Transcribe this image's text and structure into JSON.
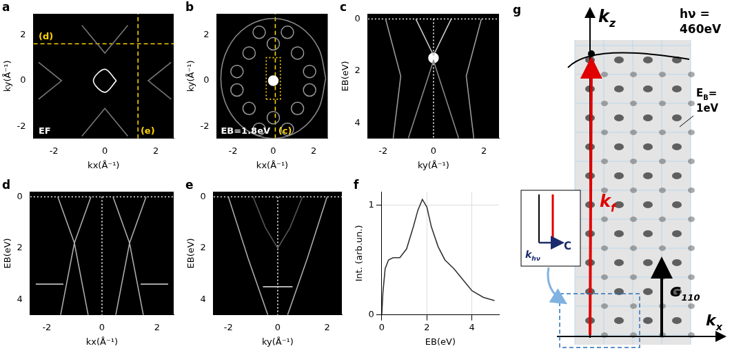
{
  "chart_data": [
    {
      "panel": "a",
      "type": "intensity_map",
      "xlabel": "kx(Å⁻¹)",
      "ylabel": "ky(Å⁻¹)",
      "xlim": [
        -2.8,
        2.7
      ],
      "ylim": [
        -2.5,
        2.9
      ],
      "xticks": [
        -2,
        0,
        2
      ],
      "yticks": [
        -2,
        0,
        2
      ],
      "grid": false,
      "series": [
        {
          "type": "line",
          "color": "#ffffff",
          "values": [
            [
              0.45,
              0
            ],
            [
              0,
              0.5
            ],
            [
              -0.45,
              0
            ],
            [
              0,
              -0.5
            ],
            [
              0.45,
              0
            ]
          ]
        },
        {
          "type": "line",
          "color": "#777777",
          "values": [
            [
              -0.9,
              2.4
            ],
            [
              0,
              1.2
            ],
            [
              0.9,
              2.4
            ]
          ]
        },
        {
          "type": "line",
          "color": "#777777",
          "values": [
            [
              -0.9,
              -2.4
            ],
            [
              0,
              -1.2
            ],
            [
              0.9,
              -2.4
            ]
          ]
        },
        {
          "type": "line",
          "color": "#777777",
          "values": [
            [
              -2.6,
              0.8
            ],
            [
              -1.7,
              0
            ],
            [
              -2.6,
              -0.8
            ]
          ]
        },
        {
          "type": "line",
          "color": "#777777",
          "values": [
            [
              2.6,
              0.8
            ],
            [
              1.7,
              0
            ],
            [
              2.6,
              -0.8
            ]
          ]
        },
        {
          "type": "line",
          "color": "#ffd400",
          "line_style": "dashed",
          "values": [
            [
              -2.8,
              1.6
            ],
            [
              2.7,
              1.6
            ]
          ]
        },
        {
          "type": "line",
          "color": "#ffd400",
          "line_style": "dashed",
          "values": [
            [
              1.3,
              -2.5
            ],
            [
              1.3,
              2.9
            ]
          ]
        }
      ],
      "annotations": [
        {
          "text": "(d)",
          "x": -2.6,
          "y": 1.7,
          "color": "#ffd400"
        },
        {
          "text": "(e)",
          "x": 1.4,
          "y": -2.4,
          "color": "#ffd400"
        },
        {
          "text": "EF",
          "x": -2.6,
          "y": -2.4,
          "color": "#ffffff"
        }
      ]
    },
    {
      "panel": "b",
      "type": "intensity_map",
      "xlabel": "kx(Å⁻¹)",
      "ylabel": "ky(Å⁻¹)",
      "xlim": [
        -2.8,
        2.7
      ],
      "ylim": [
        -2.5,
        2.9
      ],
      "xticks": [
        -2,
        0,
        2
      ],
      "yticks": [
        -2,
        0,
        2
      ],
      "grid": false,
      "series": [
        {
          "type": "line",
          "color": "#888888",
          "values": [
            [
              2.6,
              0.1
            ],
            [
              2.25,
              1.4
            ],
            [
              1.3,
              2.35
            ],
            [
              0,
              2.7
            ],
            [
              -1.3,
              2.35
            ],
            [
              -2.25,
              1.4
            ],
            [
              -2.6,
              0.1
            ],
            [
              -2.25,
              -1.2
            ],
            [
              -1.3,
              -2.15
            ],
            [
              0,
              -2.5
            ],
            [
              1.3,
              -2.15
            ],
            [
              2.25,
              -1.2
            ],
            [
              2.6,
              0.1
            ]
          ]
        },
        {
          "type": "scatter",
          "color": "#999999",
          "marker": "circle",
          "values": [
            [
              0,
              1.6
            ],
            [
              0,
              -1.6
            ],
            [
              -1.2,
              1.2
            ],
            [
              1.2,
              1.2
            ],
            [
              -1.2,
              -1.2
            ],
            [
              1.2,
              -1.2
            ],
            [
              -1.8,
              0.4
            ],
            [
              1.8,
              0.4
            ],
            [
              -1.8,
              -0.4
            ],
            [
              1.8,
              -0.4
            ],
            [
              -0.7,
              2.1
            ],
            [
              0.7,
              2.1
            ],
            [
              -0.7,
              -2.1
            ],
            [
              0.7,
              -2.1
            ]
          ]
        },
        {
          "type": "scatter",
          "color": "#ffffff",
          "marker": "dot",
          "values": [
            [
              0,
              0
            ]
          ]
        },
        {
          "type": "line",
          "color": "#ffd400",
          "line_style": "dashed",
          "values": [
            [
              0.1,
              -2.5
            ],
            [
              0.1,
              2.9
            ]
          ]
        },
        {
          "type": "line",
          "color": "#ffd400",
          "line_style": "dotted",
          "values": [
            [
              -0.35,
              -0.8
            ],
            [
              0.35,
              -0.8
            ],
            [
              0.35,
              1.0
            ],
            [
              -0.35,
              1.0
            ],
            [
              -0.35,
              -0.8
            ]
          ]
        }
      ],
      "annotations": [
        {
          "text": "EB=1.8eV",
          "x": -2.6,
          "y": -2.4,
          "color": "#ffffff"
        },
        {
          "text": "(c)",
          "x": 0.25,
          "y": -2.4,
          "color": "#ffd400"
        }
      ]
    },
    {
      "panel": "c",
      "type": "intensity_map",
      "xlabel": "ky(Å⁻¹)",
      "ylabel": "EB(eV)",
      "xlim": [
        -2.6,
        2.6
      ],
      "ylim": [
        4.6,
        -0.2
      ],
      "xticks": [
        -2,
        0,
        2
      ],
      "yticks": [
        0,
        2,
        4
      ],
      "grid": false,
      "series": [
        {
          "type": "line",
          "color": "#cccccc",
          "values": [
            [
              -0.7,
              0
            ],
            [
              0,
              1.4
            ],
            [
              0.7,
              0
            ]
          ]
        },
        {
          "type": "line",
          "color": "#888888",
          "values": [
            [
              -1.0,
              4.6
            ],
            [
              0,
              1.6
            ],
            [
              1.0,
              4.6
            ]
          ]
        },
        {
          "type": "line",
          "color": "#999999",
          "values": [
            [
              -1.9,
              0
            ],
            [
              -1.3,
              2.2
            ],
            [
              -1.6,
              4.6
            ]
          ]
        },
        {
          "type": "line",
          "color": "#999999",
          "values": [
            [
              1.9,
              0
            ],
            [
              1.3,
              2.2
            ],
            [
              1.6,
              4.6
            ]
          ]
        },
        {
          "type": "scatter",
          "color": "#ffffff",
          "marker": "dot",
          "values": [
            [
              0,
              1.5
            ]
          ]
        },
        {
          "type": "line",
          "color": "#ffffff",
          "line_style": "dotted",
          "values": [
            [
              0,
              0
            ],
            [
              0,
              4.6
            ]
          ]
        },
        {
          "type": "line",
          "color": "#ffffff",
          "line_style": "dotted",
          "values": [
            [
              -2.6,
              0
            ],
            [
              2.6,
              0
            ]
          ]
        }
      ],
      "annotations": []
    },
    {
      "panel": "d",
      "type": "intensity_map",
      "xlabel": "kx(Å⁻¹)",
      "ylabel": "EB(eV)",
      "xlim": [
        -2.6,
        2.6
      ],
      "ylim": [
        4.6,
        -0.2
      ],
      "xticks": [
        -2,
        0,
        2
      ],
      "yticks": [
        0,
        2,
        4
      ],
      "grid": false,
      "series": [
        {
          "type": "line",
          "color": "#aaaaaa",
          "values": [
            [
              -1.6,
              0
            ],
            [
              -1.0,
              1.8
            ],
            [
              -0.5,
              4.6
            ]
          ]
        },
        {
          "type": "line",
          "color": "#aaaaaa",
          "values": [
            [
              -0.4,
              0
            ],
            [
              -1.0,
              1.8
            ],
            [
              -1.5,
              4.6
            ]
          ]
        },
        {
          "type": "line",
          "color": "#aaaaaa",
          "values": [
            [
              1.6,
              0
            ],
            [
              1.0,
              1.8
            ],
            [
              0.5,
              4.6
            ]
          ]
        },
        {
          "type": "line",
          "color": "#aaaaaa",
          "values": [
            [
              0.4,
              0
            ],
            [
              1.0,
              1.8
            ],
            [
              1.5,
              4.6
            ]
          ]
        },
        {
          "type": "line",
          "color": "#bbbbbb",
          "values": [
            [
              -2.4,
              3.4
            ],
            [
              -1.4,
              3.4
            ]
          ]
        },
        {
          "type": "line",
          "color": "#bbbbbb",
          "values": [
            [
              1.4,
              3.4
            ],
            [
              2.4,
              3.4
            ]
          ]
        },
        {
          "type": "line",
          "color": "#ffffff",
          "line_style": "dotted",
          "values": [
            [
              0,
              0
            ],
            [
              0,
              4.6
            ]
          ]
        },
        {
          "type": "line",
          "color": "#ffffff",
          "line_style": "dotted",
          "values": [
            [
              -2.6,
              0
            ],
            [
              2.6,
              0
            ]
          ]
        }
      ],
      "annotations": []
    },
    {
      "panel": "e",
      "type": "intensity_map",
      "xlabel": "ky(Å⁻¹)",
      "ylabel": "EB(eV)",
      "xlim": [
        -2.6,
        2.6
      ],
      "ylim": [
        4.6,
        -0.2
      ],
      "xticks": [
        -2,
        0,
        2
      ],
      "yticks": [
        0,
        2,
        4
      ],
      "grid": false,
      "series": [
        {
          "type": "line",
          "color": "#aaaaaa",
          "values": [
            [
              -2.0,
              0
            ],
            [
              -1.2,
              2.4
            ],
            [
              -0.4,
              4.6
            ]
          ]
        },
        {
          "type": "line",
          "color": "#aaaaaa",
          "values": [
            [
              0.4,
              4.6
            ],
            [
              1.2,
              2.4
            ],
            [
              2.0,
              0
            ]
          ]
        },
        {
          "type": "line",
          "color": "#cccccc",
          "values": [
            [
              -0.6,
              3.5
            ],
            [
              0.6,
              3.5
            ]
          ]
        },
        {
          "type": "line",
          "color": "#555555",
          "values": [
            [
              -1.0,
              0
            ],
            [
              -0.5,
              1.2
            ],
            [
              0,
              2.0
            ],
            [
              0.5,
              1.2
            ],
            [
              1.0,
              0
            ]
          ]
        },
        {
          "type": "line",
          "color": "#ffffff",
          "line_style": "dotted",
          "values": [
            [
              0,
              0
            ],
            [
              0,
              4.6
            ]
          ]
        },
        {
          "type": "line",
          "color": "#ffffff",
          "line_style": "dotted",
          "values": [
            [
              -2.6,
              0
            ],
            [
              2.6,
              0
            ]
          ]
        }
      ],
      "annotations": []
    },
    {
      "panel": "f",
      "type": "line",
      "xlabel": "EB(eV)",
      "ylabel": "Int. (arb.un.)",
      "xlim": [
        0,
        5.2
      ],
      "ylim": [
        0,
        1.12
      ],
      "xticks": [
        0,
        2,
        4
      ],
      "yticks": [
        0,
        1
      ],
      "grid": true,
      "series": [
        {
          "type": "line",
          "color": "#333333",
          "values": [
            [
              0,
              0
            ],
            [
              0.05,
              0.2
            ],
            [
              0.15,
              0.42
            ],
            [
              0.3,
              0.5
            ],
            [
              0.5,
              0.52
            ],
            [
              0.8,
              0.52
            ],
            [
              1.1,
              0.6
            ],
            [
              1.4,
              0.8
            ],
            [
              1.6,
              0.95
            ],
            [
              1.8,
              1.05
            ],
            [
              2.0,
              0.98
            ],
            [
              2.2,
              0.8
            ],
            [
              2.5,
              0.62
            ],
            [
              2.8,
              0.5
            ],
            [
              3.2,
              0.42
            ],
            [
              3.6,
              0.32
            ],
            [
              4.0,
              0.22
            ],
            [
              4.5,
              0.16
            ],
            [
              5.0,
              0.13
            ]
          ]
        }
      ],
      "annotations": []
    }
  ],
  "diagram": {
    "panel": "g",
    "kz": {
      "text": "k",
      "sub": "z"
    },
    "photon": {
      "text": "hν ="
    },
    "energy": {
      "text": "460eV"
    },
    "eb": {
      "text": "E",
      "sub": "B",
      "after": "="
    },
    "eb_value": {
      "text": "1eV"
    },
    "kf": {
      "text": "k",
      "sub": "f"
    },
    "g": {
      "text": "G",
      "sub": "110"
    },
    "kx": {
      "text": "k",
      "sub": "x"
    },
    "khv": {
      "text": "k",
      "sub": "hν"
    },
    "c": {
      "text": "C"
    }
  }
}
